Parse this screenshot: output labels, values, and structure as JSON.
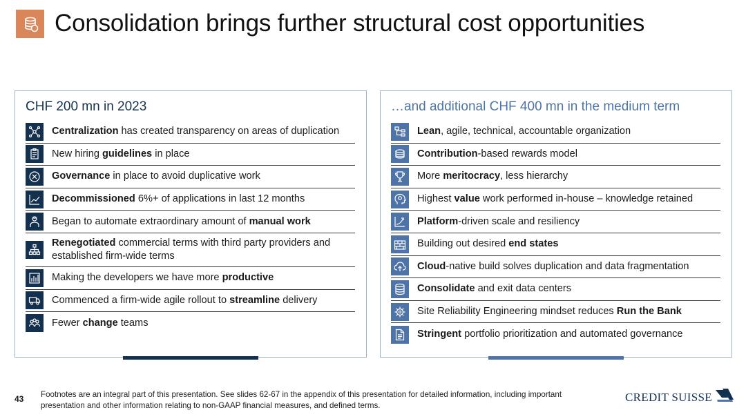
{
  "header": {
    "icon": "coin-stack-icon",
    "title": "Consolidation brings further structural cost opportunities"
  },
  "colors": {
    "navy": "#14304f",
    "steel_blue": "#4e73a6",
    "accent_orange": "#d9875a"
  },
  "left_panel": {
    "title": "CHF 200 mn in 2023",
    "items": [
      {
        "icon": "network-icon",
        "bold": "Centralization",
        "rest": " has created transparency on areas of duplication"
      },
      {
        "icon": "clipboard-icon",
        "lead": "New hiring ",
        "bold": "guidelines",
        "rest": " in place"
      },
      {
        "icon": "cancel-circle-icon",
        "bold": "Governance",
        "rest": " in place to avoid duplicative work"
      },
      {
        "icon": "trend-chart-icon",
        "bold": "Decommissioned",
        "rest": " 6%+ of applications in last 12 months"
      },
      {
        "icon": "worker-icon",
        "lead": "Began to automate extraordinary amount of ",
        "bold": "manual work",
        "rest": ""
      },
      {
        "icon": "hierarchy-icon",
        "bold": "Renegotiated",
        "rest": " commercial terms with third party providers and established firm-wide terms"
      },
      {
        "icon": "bar-chart-icon",
        "lead": "Making the developers we have more ",
        "bold": "productive",
        "rest": ""
      },
      {
        "icon": "truck-icon",
        "lead": "Commenced a firm-wide agile rollout to ",
        "bold": "streamline",
        "rest": " delivery"
      },
      {
        "icon": "team-icon",
        "lead": "Fewer ",
        "bold": "change",
        "rest": " teams"
      }
    ]
  },
  "right_panel": {
    "title": "…and additional CHF 400 mn in the medium term",
    "items": [
      {
        "icon": "org-chart-icon",
        "bold": "Lean",
        "rest": ", agile, technical, accountable organization"
      },
      {
        "icon": "coins-icon",
        "bold": "Contribution",
        "rest": "-based rewards model"
      },
      {
        "icon": "trophy-icon",
        "lead": "More ",
        "bold": "meritocracy",
        "rest": ", less hierarchy"
      },
      {
        "icon": "brain-head-icon",
        "lead": "Highest ",
        "bold": "value",
        "rest": " work performed in-house – knowledge retained"
      },
      {
        "icon": "growth-chart-icon",
        "bold": "Platform",
        "rest": "-driven scale and resiliency"
      },
      {
        "icon": "bricks-icon",
        "lead": "Building out desired ",
        "bold": "end states",
        "rest": ""
      },
      {
        "icon": "cloud-upload-icon",
        "bold": "Cloud",
        "rest": "-native build solves duplication and data fragmentation"
      },
      {
        "icon": "database-icon",
        "bold": "Consolidate",
        "rest": " and exit data centers"
      },
      {
        "icon": "gear-brain-icon",
        "lead": "Site Reliability Engineering mindset reduces ",
        "bold": "Run the Bank",
        "rest": ""
      },
      {
        "icon": "document-icon",
        "bold": "Stringent",
        "rest": " portfolio prioritization and automated governance"
      }
    ]
  },
  "footer": {
    "page_number": "43",
    "footnote": "Footnotes are an integral part of this presentation. See slides 62-67 in the appendix of this presentation for detailed information, including important presentation and other information relating to non-GAAP financial measures, and defined terms.",
    "logo_text": "CREDIT SUISSE"
  }
}
